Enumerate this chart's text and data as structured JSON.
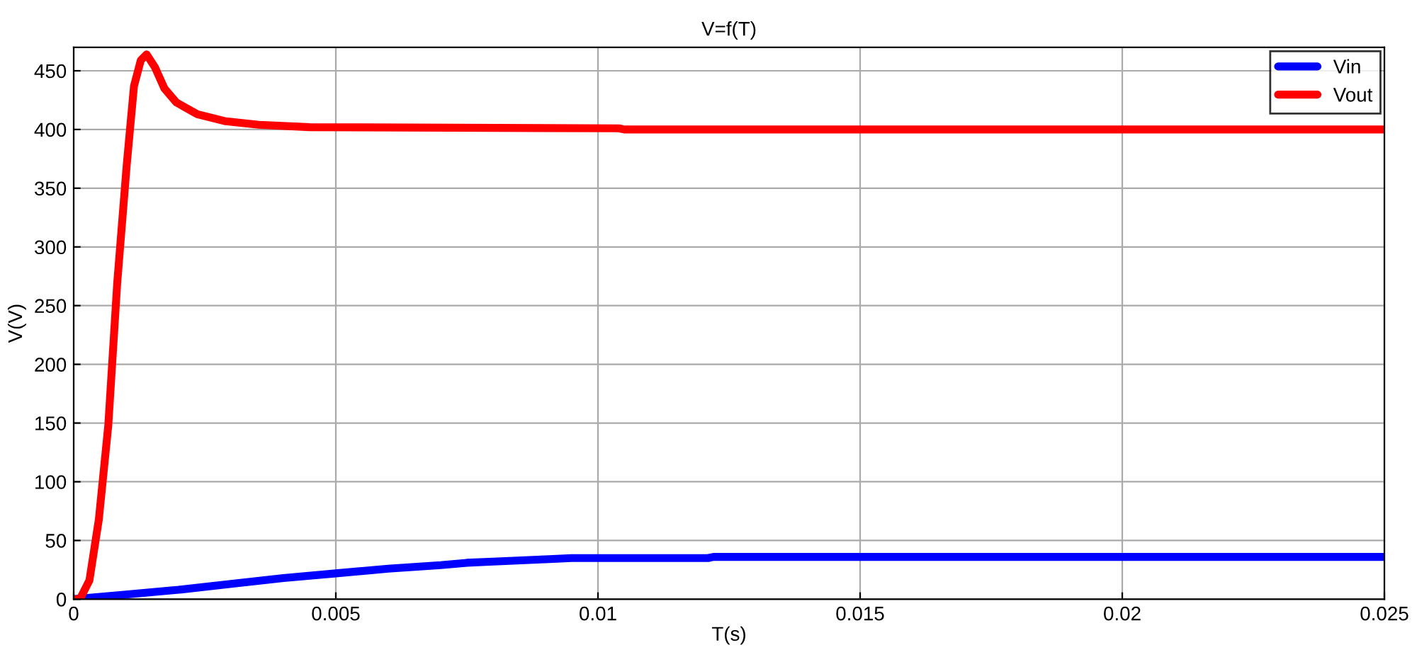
{
  "chart_data": {
    "type": "line",
    "title": "V=f(T)",
    "xlabel": "T(s)",
    "ylabel": "V(V)",
    "xlim": [
      0,
      0.025
    ],
    "xticks": [
      0,
      0.005,
      0.01,
      0.015,
      0.02,
      0.025
    ],
    "ylim": [
      0,
      470
    ],
    "yticks": [
      0,
      50,
      100,
      150,
      200,
      250,
      300,
      350,
      400,
      450
    ],
    "grid": true,
    "legend": "top right",
    "line_style": "solid",
    "marker": "none",
    "series": [
      {
        "name": "Vin",
        "color": "#0000ff",
        "x": [
          0,
          0.001,
          0.002,
          0.003,
          0.004,
          0.005,
          0.006,
          0.007,
          0.0075,
          0.008,
          0.009,
          0.0095,
          0.01,
          0.0121,
          0.0122,
          0.025
        ],
        "values": [
          0,
          4,
          8,
          13,
          18,
          22,
          26,
          29,
          31,
          32,
          34,
          35,
          35,
          35,
          36,
          36
        ]
      },
      {
        "name": "Vout",
        "color": "#ff0000",
        "x": [
          0,
          0.00012,
          0.0003,
          0.00048,
          0.00066,
          0.00083,
          0.00101,
          0.00115,
          0.00128,
          0.00139,
          0.00155,
          0.00173,
          0.00196,
          0.00236,
          0.0029,
          0.00353,
          0.0045,
          0.0104,
          0.0105,
          0.025
        ],
        "values": [
          0,
          0,
          16,
          68,
          148,
          269,
          369,
          437,
          459,
          464,
          453,
          435,
          423,
          413,
          407,
          404,
          402,
          401,
          400,
          400
        ]
      }
    ]
  }
}
